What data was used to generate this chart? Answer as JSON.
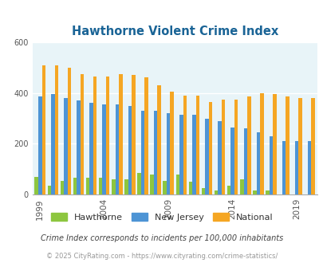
{
  "title": "Hawthorne Violent Crime Index",
  "title_color": "#1a6496",
  "years": [
    1999,
    2000,
    2001,
    2002,
    2003,
    2004,
    2005,
    2006,
    2007,
    2008,
    2009,
    2010,
    2011,
    2012,
    2013,
    2014,
    2015,
    2016,
    2017,
    2018,
    2019,
    2020
  ],
  "hawthorne": [
    70,
    35,
    55,
    65,
    65,
    65,
    60,
    60,
    85,
    80,
    55,
    80,
    50,
    25,
    15,
    35,
    60,
    15,
    15,
    0,
    0,
    0
  ],
  "new_jersey": [
    385,
    395,
    380,
    370,
    360,
    355,
    355,
    350,
    330,
    330,
    320,
    315,
    315,
    300,
    290,
    265,
    260,
    245,
    230,
    210,
    210,
    210
  ],
  "national": [
    510,
    510,
    500,
    475,
    465,
    465,
    475,
    470,
    460,
    430,
    405,
    390,
    390,
    365,
    375,
    375,
    385,
    400,
    395,
    385,
    380,
    380
  ],
  "hawthorne_color": "#8dc63f",
  "nj_color": "#4d94d5",
  "national_color": "#f5a623",
  "bg_color": "#e8f4f8",
  "ylim": [
    0,
    600
  ],
  "yticks": [
    0,
    200,
    400,
    600
  ],
  "xtick_years": [
    1999,
    2004,
    2009,
    2014,
    2019
  ],
  "subtitle": "Crime Index corresponds to incidents per 100,000 inhabitants",
  "footer": "© 2025 CityRating.com - https://www.cityrating.com/crime-statistics/",
  "subtitle_color": "#444444",
  "footer_color": "#999999",
  "bar_width": 0.28,
  "grid_color": "#ffffff"
}
